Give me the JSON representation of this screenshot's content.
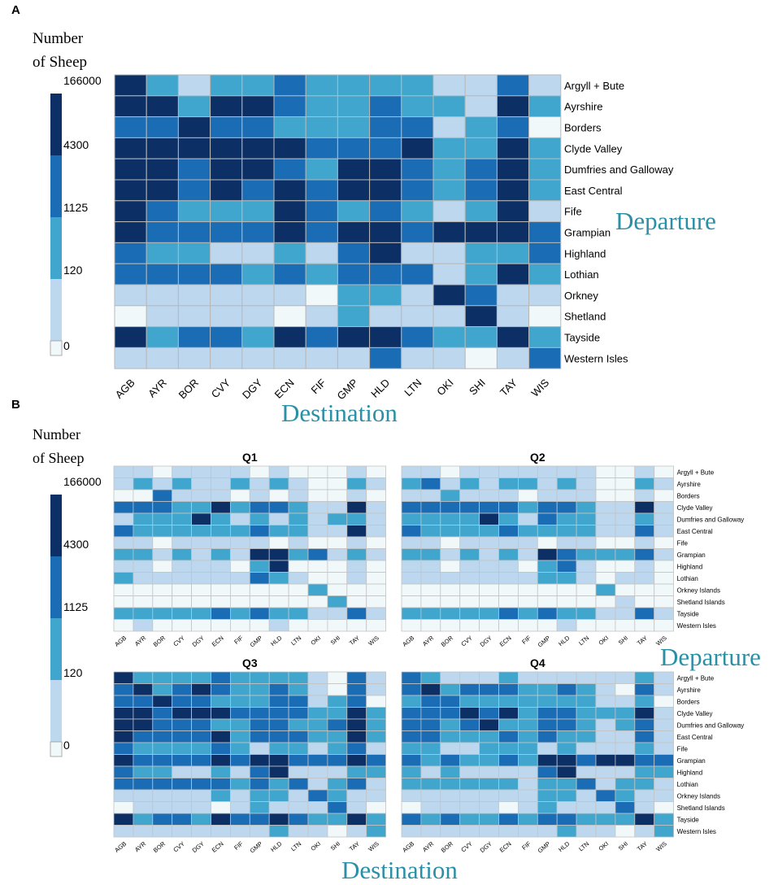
{
  "colors": [
    "#f1f8fa",
    "#bdd7ee",
    "#41a6cd",
    "#1a6db5",
    "#0c2f66"
  ],
  "chart_data": [
    {
      "panel": "A",
      "type": "heatmap",
      "title": "",
      "xlabel": "Destination",
      "ylabel": "Departure",
      "legend_title_1": "Number",
      "legend_title_2": "of Sheep",
      "legend_ticks": [
        "166000",
        "4300",
        "1125",
        "120",
        "0"
      ],
      "x": [
        "AGB",
        "AYR",
        "BOR",
        "CVY",
        "DGY",
        "ECN",
        "FIF",
        "GMP",
        "HLD",
        "LTN",
        "OKI",
        "SHI",
        "TAY",
        "WIS"
      ],
      "y": [
        "Argyll + Bute",
        "Ayrshire",
        "Borders",
        "Clyde Valley",
        "Dumfries and Galloway",
        "East Central",
        "Fife",
        "Grampian",
        "Highland",
        "Lothian",
        "Orkney",
        "Shetland",
        "Tayside",
        "Western Isles"
      ],
      "values": [
        [
          4,
          2,
          1,
          2,
          2,
          3,
          2,
          2,
          2,
          2,
          1,
          1,
          3,
          1
        ],
        [
          4,
          4,
          2,
          4,
          4,
          3,
          2,
          2,
          3,
          2,
          2,
          1,
          4,
          2
        ],
        [
          3,
          3,
          4,
          3,
          3,
          2,
          2,
          2,
          3,
          3,
          1,
          2,
          3,
          0
        ],
        [
          4,
          4,
          4,
          4,
          4,
          4,
          3,
          3,
          3,
          4,
          2,
          2,
          4,
          2
        ],
        [
          4,
          4,
          3,
          4,
          4,
          3,
          2,
          4,
          4,
          3,
          2,
          3,
          4,
          2
        ],
        [
          4,
          4,
          3,
          4,
          3,
          4,
          3,
          4,
          4,
          3,
          2,
          3,
          4,
          2
        ],
        [
          4,
          3,
          2,
          2,
          2,
          4,
          3,
          2,
          3,
          2,
          1,
          2,
          4,
          1
        ],
        [
          4,
          3,
          3,
          3,
          3,
          4,
          3,
          4,
          4,
          3,
          4,
          4,
          4,
          3
        ],
        [
          3,
          2,
          2,
          1,
          1,
          2,
          1,
          3,
          4,
          1,
          1,
          2,
          2,
          3
        ],
        [
          3,
          3,
          3,
          3,
          2,
          3,
          2,
          3,
          3,
          3,
          1,
          2,
          4,
          2
        ],
        [
          1,
          1,
          1,
          1,
          1,
          1,
          0,
          2,
          2,
          1,
          4,
          3,
          1,
          1
        ],
        [
          0,
          1,
          1,
          1,
          1,
          0,
          1,
          2,
          1,
          1,
          1,
          4,
          1,
          0
        ],
        [
          4,
          2,
          3,
          3,
          2,
          4,
          3,
          4,
          4,
          3,
          2,
          2,
          4,
          2
        ],
        [
          1,
          1,
          1,
          1,
          1,
          1,
          1,
          1,
          3,
          1,
          1,
          0,
          1,
          3
        ]
      ]
    },
    {
      "panel": "B",
      "type": "heatmap",
      "title": "",
      "xlabel": "Destination",
      "ylabel": "Departure",
      "legend_title_1": "Number",
      "legend_title_2": "of Sheep",
      "legend_ticks": [
        "166000",
        "4300",
        "1125",
        "120",
        "0"
      ],
      "x": [
        "AGB",
        "AYR",
        "BOR",
        "CVY",
        "DGY",
        "ECN",
        "FIF",
        "GMP",
        "HLD",
        "LTN",
        "OKI",
        "SHI",
        "TAY",
        "WIS"
      ],
      "y": [
        "Argyll + Bute",
        "Ayrshire",
        "Borders",
        "Clyde Valley",
        "Dumfries and Galloway",
        "East Central",
        "Fife",
        "Grampian",
        "Highland",
        "Lothian",
        "Orkney Islands",
        "Shetland Islands",
        "Tayside",
        "Western Isles"
      ],
      "facets": [
        {
          "title": "Q1",
          "values": [
            [
              1,
              1,
              0,
              1,
              1,
              1,
              1,
              0,
              1,
              0,
              0,
              0,
              1,
              0
            ],
            [
              1,
              2,
              1,
              2,
              1,
              1,
              2,
              1,
              2,
              1,
              0,
              0,
              2,
              1
            ],
            [
              0,
              0,
              3,
              1,
              1,
              1,
              0,
              1,
              0,
              1,
              0,
              0,
              1,
              0
            ],
            [
              3,
              3,
              3,
              2,
              2,
              4,
              2,
              3,
              3,
              2,
              1,
              1,
              4,
              1
            ],
            [
              1,
              2,
              2,
              2,
              4,
              2,
              1,
              2,
              1,
              2,
              1,
              2,
              2,
              1
            ],
            [
              3,
              2,
              2,
              2,
              2,
              2,
              2,
              3,
              2,
              2,
              1,
              1,
              4,
              1
            ],
            [
              1,
              1,
              0,
              1,
              1,
              1,
              1,
              1,
              0,
              1,
              0,
              0,
              1,
              0
            ],
            [
              2,
              2,
              1,
              2,
              1,
              2,
              1,
              4,
              4,
              2,
              3,
              1,
              2,
              1
            ],
            [
              1,
              1,
              0,
              1,
              1,
              1,
              0,
              2,
              4,
              0,
              0,
              0,
              1,
              0
            ],
            [
              2,
              1,
              1,
              1,
              1,
              1,
              1,
              3,
              2,
              1,
              0,
              0,
              1,
              0
            ],
            [
              0,
              0,
              0,
              0,
              0,
              0,
              0,
              0,
              0,
              0,
              2,
              0,
              0,
              0
            ],
            [
              0,
              0,
              0,
              0,
              0,
              0,
              0,
              0,
              0,
              0,
              0,
              2,
              0,
              0
            ],
            [
              2,
              2,
              2,
              2,
              2,
              3,
              2,
              3,
              2,
              2,
              1,
              1,
              3,
              1
            ],
            [
              0,
              1,
              0,
              0,
              0,
              0,
              0,
              0,
              1,
              0,
              0,
              0,
              0,
              0
            ]
          ]
        },
        {
          "title": "Q2",
          "values": [
            [
              1,
              1,
              0,
              1,
              1,
              1,
              1,
              1,
              1,
              1,
              0,
              0,
              1,
              0
            ],
            [
              2,
              3,
              1,
              2,
              1,
              2,
              2,
              1,
              2,
              1,
              0,
              0,
              2,
              1
            ],
            [
              1,
              1,
              2,
              1,
              1,
              1,
              0,
              1,
              1,
              1,
              0,
              0,
              1,
              0
            ],
            [
              3,
              3,
              3,
              3,
              3,
              3,
              2,
              3,
              3,
              2,
              1,
              1,
              4,
              1
            ],
            [
              2,
              2,
              2,
              2,
              4,
              2,
              1,
              3,
              2,
              2,
              1,
              1,
              2,
              1
            ],
            [
              3,
              2,
              2,
              2,
              2,
              3,
              2,
              2,
              2,
              2,
              1,
              1,
              3,
              1
            ],
            [
              1,
              1,
              0,
              1,
              1,
              1,
              1,
              0,
              1,
              1,
              0,
              0,
              1,
              0
            ],
            [
              2,
              2,
              1,
              2,
              1,
              2,
              1,
              4,
              3,
              2,
              2,
              2,
              3,
              1
            ],
            [
              1,
              1,
              0,
              1,
              1,
              1,
              0,
              2,
              3,
              1,
              0,
              0,
              1,
              0
            ],
            [
              1,
              1,
              1,
              1,
              1,
              1,
              1,
              2,
              2,
              1,
              0,
              1,
              1,
              0
            ],
            [
              0,
              0,
              0,
              0,
              0,
              0,
              0,
              0,
              0,
              0,
              2,
              0,
              0,
              0
            ],
            [
              0,
              0,
              0,
              0,
              0,
              0,
              0,
              0,
              0,
              0,
              0,
              1,
              0,
              0
            ],
            [
              2,
              2,
              2,
              2,
              2,
              3,
              2,
              3,
              2,
              2,
              1,
              1,
              3,
              1
            ],
            [
              0,
              0,
              0,
              0,
              0,
              0,
              0,
              0,
              1,
              0,
              0,
              0,
              0,
              0
            ]
          ]
        },
        {
          "title": "Q3",
          "values": [
            [
              4,
              2,
              2,
              2,
              2,
              3,
              2,
              2,
              2,
              2,
              1,
              0,
              3,
              1
            ],
            [
              3,
              4,
              2,
              3,
              4,
              3,
              2,
              2,
              3,
              2,
              1,
              0,
              3,
              1
            ],
            [
              3,
              3,
              4,
              3,
              3,
              2,
              2,
              2,
              3,
              3,
              1,
              2,
              3,
              0
            ],
            [
              4,
              4,
              3,
              4,
              4,
              4,
              3,
              3,
              3,
              3,
              2,
              2,
              4,
              2
            ],
            [
              4,
              4,
              3,
              3,
              3,
              2,
              2,
              3,
              3,
              2,
              2,
              3,
              4,
              2
            ],
            [
              4,
              3,
              3,
              3,
              3,
              4,
              2,
              3,
              3,
              3,
              2,
              2,
              4,
              2
            ],
            [
              3,
              2,
              2,
              2,
              2,
              3,
              2,
              1,
              2,
              2,
              1,
              2,
              3,
              1
            ],
            [
              4,
              3,
              3,
              3,
              3,
              4,
              3,
              4,
              4,
              3,
              3,
              3,
              4,
              3
            ],
            [
              3,
              2,
              2,
              1,
              1,
              2,
              1,
              3,
              4,
              1,
              1,
              1,
              2,
              2
            ],
            [
              3,
              3,
              3,
              3,
              3,
              3,
              2,
              3,
              2,
              3,
              1,
              2,
              3,
              1
            ],
            [
              1,
              1,
              1,
              1,
              1,
              2,
              1,
              2,
              2,
              1,
              3,
              2,
              1,
              1
            ],
            [
              0,
              1,
              1,
              1,
              1,
              0,
              1,
              2,
              1,
              1,
              1,
              3,
              1,
              0
            ],
            [
              4,
              2,
              3,
              3,
              2,
              4,
              3,
              3,
              4,
              3,
              2,
              2,
              4,
              2
            ],
            [
              1,
              1,
              1,
              1,
              1,
              1,
              1,
              1,
              2,
              1,
              1,
              0,
              1,
              2
            ]
          ]
        },
        {
          "title": "Q4",
          "values": [
            [
              3,
              2,
              1,
              1,
              1,
              2,
              1,
              1,
              1,
              1,
              1,
              1,
              2,
              1
            ],
            [
              3,
              4,
              2,
              3,
              3,
              3,
              2,
              2,
              3,
              2,
              1,
              0,
              3,
              1
            ],
            [
              2,
              3,
              3,
              2,
              2,
              2,
              2,
              2,
              2,
              2,
              1,
              1,
              2,
              0
            ],
            [
              3,
              3,
              3,
              4,
              3,
              4,
              2,
              3,
              3,
              2,
              2,
              2,
              4,
              1
            ],
            [
              3,
              3,
              2,
              3,
              4,
              2,
              2,
              3,
              3,
              2,
              1,
              2,
              3,
              1
            ],
            [
              3,
              3,
              2,
              2,
              2,
              3,
              2,
              3,
              2,
              2,
              1,
              1,
              3,
              1
            ],
            [
              2,
              2,
              1,
              1,
              2,
              2,
              2,
              1,
              2,
              1,
              1,
              1,
              2,
              1
            ],
            [
              3,
              2,
              3,
              2,
              2,
              3,
              2,
              4,
              4,
              3,
              4,
              4,
              3,
              3
            ],
            [
              2,
              1,
              2,
              1,
              1,
              1,
              1,
              3,
              4,
              1,
              1,
              1,
              2,
              2
            ],
            [
              2,
              2,
              2,
              2,
              2,
              2,
              1,
              2,
              2,
              3,
              1,
              2,
              2,
              1
            ],
            [
              1,
              1,
              1,
              1,
              1,
              1,
              1,
              2,
              2,
              1,
              3,
              2,
              1,
              1
            ],
            [
              0,
              1,
              1,
              1,
              1,
              0,
              1,
              2,
              1,
              1,
              1,
              3,
              1,
              0
            ],
            [
              3,
              2,
              3,
              2,
              2,
              3,
              2,
              3,
              3,
              2,
              2,
              2,
              4,
              2
            ],
            [
              1,
              1,
              1,
              1,
              1,
              1,
              1,
              1,
              2,
              1,
              1,
              0,
              1,
              2
            ]
          ]
        }
      ]
    }
  ]
}
